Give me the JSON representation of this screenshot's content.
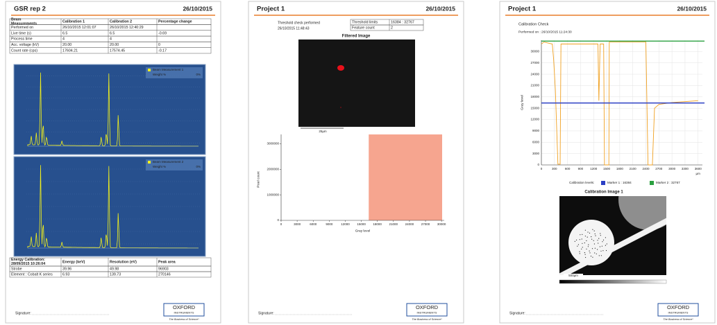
{
  "pages": [
    {
      "title": "GSR rep 2",
      "date": "26/10/2015",
      "beam_table": {
        "header": [
          "Beam Measurements",
          "Calibration 1",
          "Calibration 2",
          "Percentage change"
        ],
        "rows": [
          [
            "Performed on",
            "26/10/2015 12:01:07",
            "26/10/2015 12:40:29",
            null
          ],
          [
            "Live time (s)",
            "6.5",
            "6.5",
            "-0.69"
          ],
          [
            "Process time",
            "4",
            "4",
            null
          ],
          [
            "Acc. voltage (kV)",
            "20.00",
            "20.00",
            "0"
          ],
          [
            "Count rate (cps)",
            "17604.21",
            "17574.45",
            "-0.17"
          ]
        ]
      },
      "spectra": [
        {
          "legend": "Beam Measurement 1",
          "unit": "Weight %",
          "value": "0%"
        },
        {
          "legend": "Beam Measurement 2",
          "unit": "Weight %",
          "value": "0%"
        }
      ],
      "energy_table": {
        "header": [
          "Energy Calibration: 28/09/2015 10:26:04",
          "Energy (keV)",
          "Resolution (eV)",
          "Peak area"
        ],
        "rows": [
          [
            "Strobe",
            "39.96",
            "49.98",
            "96903"
          ],
          [
            "Element : Cobalt K series",
            "6.93",
            "139.73",
            "270146"
          ]
        ]
      },
      "signature": "Signature:",
      "logo": "OXFORD",
      "logo_sub": "INSTRUMENTS",
      "tagline": "The Business of Science*"
    },
    {
      "title": "Project 1",
      "date": "26/10/2015",
      "note": [
        "Threshold check performed",
        "26/10/2015 11:48:43"
      ],
      "threshold_table": {
        "rows": [
          [
            "Threshold limits",
            "16384 : 32767"
          ],
          [
            "Feature count",
            "2"
          ]
        ]
      },
      "image_title": "Filtered Image",
      "scale": "25µm",
      "histogram": {
        "y_label": "Pixel count",
        "x_label": "Gray level",
        "xlim": [
          0,
          30500
        ],
        "xticks": [
          0,
          3000,
          6000,
          9000,
          12000,
          15000,
          18000,
          21000,
          24000,
          27000,
          30000
        ],
        "ylim": [
          0,
          3200000
        ],
        "yticks": [
          0,
          1000000,
          2000000,
          3000000
        ],
        "highlight": [
          16384,
          32767
        ],
        "highlight_color": "#f6a58f"
      },
      "signature": "Signature:",
      "logo": "OXFORD",
      "logo_sub": "INSTRUMENTS",
      "tagline": "The Business of Science*"
    },
    {
      "title": "Project 1",
      "date": "26/10/2015",
      "section": "Calibration Check",
      "performed": "Performed on : 26/10/2015 11:24:30",
      "chart": {
        "type": "line",
        "y_label": "Gray level",
        "x_unit": "µm",
        "x": [
          0,
          60,
          250,
          280,
          320,
          380,
          430,
          450,
          480,
          1300,
          1320,
          1350,
          1430,
          1450,
          1550,
          1560,
          2400,
          2450,
          2550,
          2600,
          2700,
          3000,
          3600
        ],
        "series": [
          {
            "color": "#f0a020",
            "values": [
              32000,
              32500,
              32000,
              28000,
              20000,
              200,
              200,
              32000,
              32000,
              32000,
              17000,
              32000,
              32000,
              0,
              0,
              32500,
              32500,
              0,
              0,
              15000,
              16000,
              16500,
              17000
            ]
          }
        ],
        "xlim": [
          0,
          3700
        ],
        "xticks": [
          0,
          300,
          600,
          900,
          1200,
          1500,
          1800,
          2100,
          2400,
          2700,
          3000,
          3300,
          3600
        ],
        "ylim": [
          0,
          33000
        ],
        "yticks": [
          0,
          3000,
          6000,
          9000,
          12000,
          15000,
          18000,
          21000,
          24000,
          27000,
          30000
        ],
        "legend_title": "Calibration levels:",
        "markers": [
          {
            "label": "Marker 1 : 16384",
            "value": 16384,
            "color": "#2b3fc4"
          },
          {
            "label": "Marker 2 : 32767",
            "value": 32767,
            "color": "#2aa040"
          }
        ]
      },
      "image_title": "Calibration Image 1",
      "scale": "500µm",
      "signature": "Signature:",
      "logo": "OXFORD",
      "logo_sub": "INSTRUMENTS",
      "tagline": "The Business of Science*"
    }
  ]
}
